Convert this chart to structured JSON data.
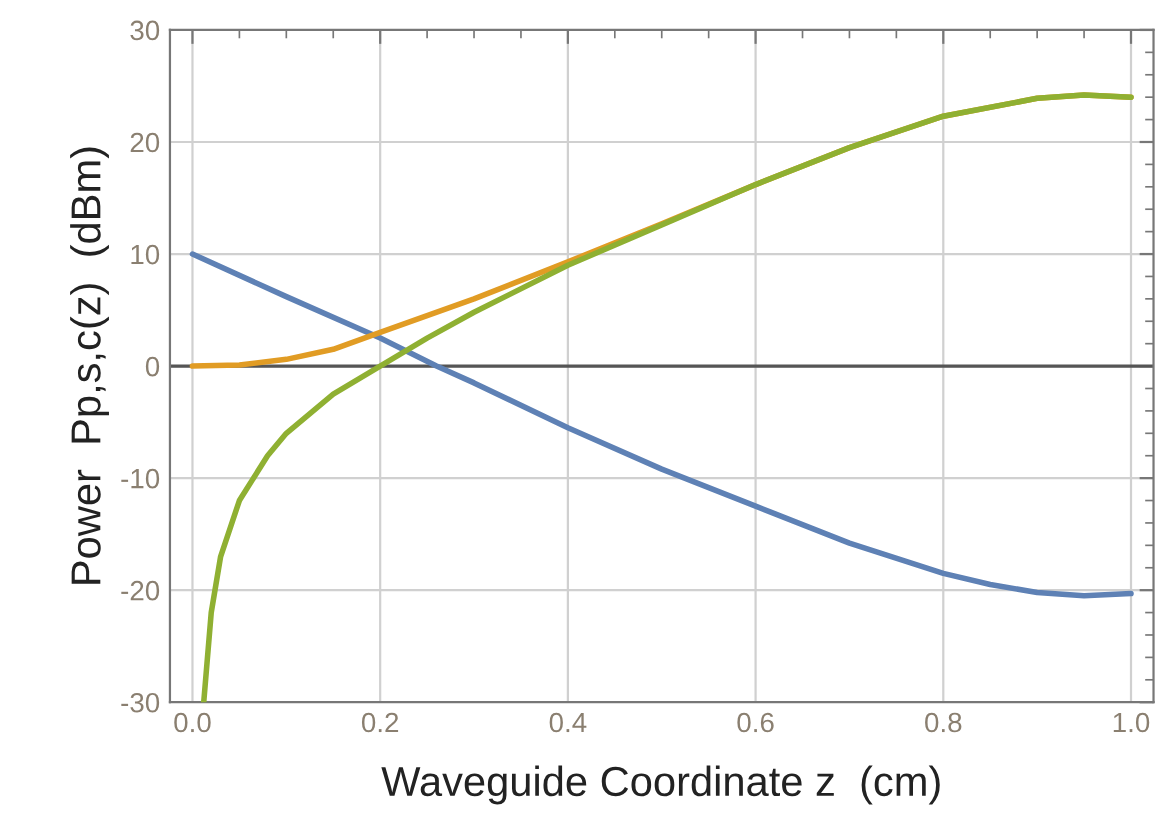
{
  "chart_data": {
    "type": "line",
    "xlabel": "Waveguide Coordinate z  (cm)",
    "ylabel": "Power  Pp,s,c(z)  (dBm)",
    "xlim": [
      -0.024,
      1.024
    ],
    "ylim": [
      -30,
      30
    ],
    "xticks": [
      {
        "value": 0,
        "label": "0.0"
      },
      {
        "value": 0.2,
        "label": "0.2"
      },
      {
        "value": 0.4,
        "label": "0.4"
      },
      {
        "value": 0.6,
        "label": "0.6"
      },
      {
        "value": 0.8,
        "label": "0.8"
      },
      {
        "value": 1.0,
        "label": "1.0"
      }
    ],
    "yticks": [
      -30,
      -20,
      -10,
      0,
      10,
      20,
      30
    ],
    "grid": true,
    "marker": "none",
    "line_style": "solid",
    "ref_lines": [
      {
        "axis": "y",
        "value": 0,
        "color": "#555555"
      }
    ],
    "series": [
      {
        "color": "#5e81b5",
        "x": [
          0,
          0.1,
          0.2,
          0.26,
          0.3,
          0.4,
          0.5,
          0.6,
          0.7,
          0.8,
          0.85,
          0.9,
          0.95,
          1.0
        ],
        "values": [
          10,
          6.2,
          2.5,
          0,
          -1.5,
          -5.5,
          -9.2,
          -12.5,
          -15.8,
          -18.5,
          -19.5,
          -20.2,
          -20.5,
          -20.3
        ]
      },
      {
        "color": "#e19c24",
        "x": [
          0,
          0.05,
          0.1,
          0.15,
          0.2,
          0.3,
          0.4,
          0.5,
          0.6,
          0.7,
          0.8,
          0.9,
          0.95,
          1.0
        ],
        "values": [
          0,
          0.1,
          0.6,
          1.5,
          3,
          6,
          9.3,
          12.7,
          16.2,
          19.5,
          22.3,
          23.9,
          24.2,
          24.0
        ]
      },
      {
        "color": "#8fb032",
        "x": [
          0.012,
          0.02,
          0.03,
          0.05,
          0.08,
          0.1,
          0.15,
          0.2,
          0.25,
          0.3,
          0.4,
          0.5,
          0.6,
          0.7,
          0.8,
          0.9,
          0.95,
          1.0
        ],
        "values": [
          -30,
          -22,
          -17,
          -12,
          -8,
          -6,
          -2.5,
          0,
          2.5,
          4.8,
          9,
          12.6,
          16.2,
          19.5,
          22.3,
          23.9,
          24.2,
          24.0
        ]
      }
    ]
  }
}
